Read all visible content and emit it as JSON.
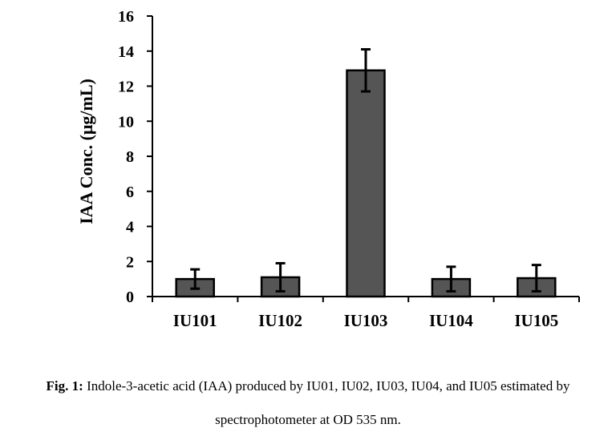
{
  "chart_data": {
    "type": "bar",
    "categories": [
      "IU101",
      "IU102",
      "IU103",
      "IU104",
      "IU105"
    ],
    "values": [
      1.0,
      1.1,
      12.9,
      1.0,
      1.05
    ],
    "errors": [
      0.55,
      0.8,
      1.2,
      0.7,
      0.75
    ],
    "title": "",
    "xlabel": "",
    "ylabel": "IAA Conc. (μg/mL)",
    "ylim": [
      0,
      16
    ],
    "yticks": [
      0,
      2,
      4,
      6,
      8,
      10,
      12,
      14,
      16
    ],
    "grid": false,
    "legend": "none",
    "bar_color": "#555555",
    "edge_color": "#000000"
  },
  "caption": {
    "label": "Fig. 1:",
    "text": " Indole-3-acetic acid (IAA) produced by IU01, IU02, IU03, IU04, and IU05 estimated by",
    "line2": "spectrophotometer at OD 535 nm."
  }
}
